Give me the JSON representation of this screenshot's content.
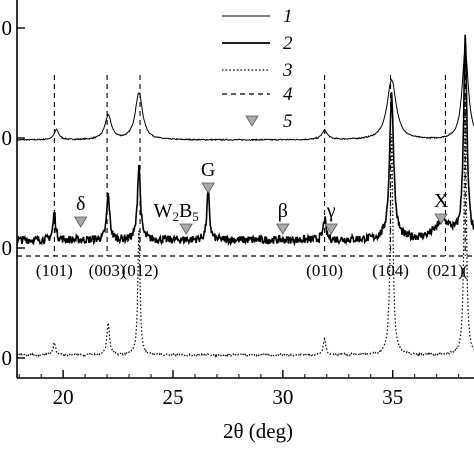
{
  "chart_data": {
    "type": "line",
    "xlabel": "2θ (deg)",
    "xlim": [
      17.9,
      38.7
    ],
    "x_ticks": [
      20,
      25,
      30,
      35
    ],
    "y_tick_labels": [
      "0",
      "0",
      "0",
      "0"
    ],
    "legend": {
      "placement": "top-center",
      "entries": [
        {
          "label": "1",
          "style": "thin-solid"
        },
        {
          "label": "2",
          "style": "thick-solid"
        },
        {
          "label": "3",
          "style": "dotted"
        },
        {
          "label": "4",
          "style": "dashed"
        },
        {
          "label": "5",
          "style": "gray-triangle"
        }
      ]
    },
    "phase_markers": [
      {
        "label": "δ",
        "x": 20.8
      },
      {
        "label": "W2B5",
        "x": 25.6
      },
      {
        "label": "G",
        "x": 26.6
      },
      {
        "label": "β",
        "x": 30.0
      },
      {
        "label": "γ",
        "x": 32.2
      },
      {
        "label": "X",
        "x": 37.2
      }
    ],
    "reflections": [
      {
        "label": "(101)",
        "x": 19.6
      },
      {
        "label": "(003)",
        "x": 22.0
      },
      {
        "label": "(012)",
        "x": 23.5
      },
      {
        "label": "(010)",
        "x": 31.9
      },
      {
        "label": "(104)",
        "x": 34.9
      },
      {
        "label": "(021)",
        "x": 37.4
      },
      {
        "label": "(",
        "x": 38.3
      }
    ],
    "series": [
      {
        "name": "1",
        "baseline": 140,
        "noise": 0.6,
        "peaks": [
          [
            19.7,
            10,
            0.13
          ],
          [
            22.05,
            24,
            0.18
          ],
          [
            23.45,
            47,
            0.2
          ],
          [
            31.9,
            9,
            0.16
          ],
          [
            34.95,
            60,
            0.25
          ],
          [
            38.3,
            90,
            0.17
          ]
        ]
      },
      {
        "name": "2",
        "baseline": 240,
        "noise": 4,
        "peaks": [
          [
            19.6,
            28,
            0.07
          ],
          [
            22.05,
            45,
            0.08
          ],
          [
            23.45,
            75,
            0.08
          ],
          [
            26.6,
            50,
            0.07
          ],
          [
            31.9,
            22,
            0.07
          ],
          [
            34.95,
            145,
            0.11
          ],
          [
            37.3,
            18,
            0.45
          ],
          [
            38.3,
            200,
            0.09
          ]
        ]
      },
      {
        "name": "3",
        "baseline": 355,
        "noise": 1,
        "peaks": [
          [
            19.6,
            12,
            0.07
          ],
          [
            22.05,
            32,
            0.07
          ],
          [
            23.45,
            125,
            0.06
          ],
          [
            31.9,
            16,
            0.07
          ],
          [
            34.95,
            220,
            0.07
          ],
          [
            38.3,
            260,
            0.06
          ]
        ]
      },
      {
        "name": "4",
        "baseline": 256,
        "peak_lines": [
          19.6,
          22.0,
          23.5,
          31.9,
          34.9,
          37.4,
          38.3
        ]
      }
    ]
  }
}
